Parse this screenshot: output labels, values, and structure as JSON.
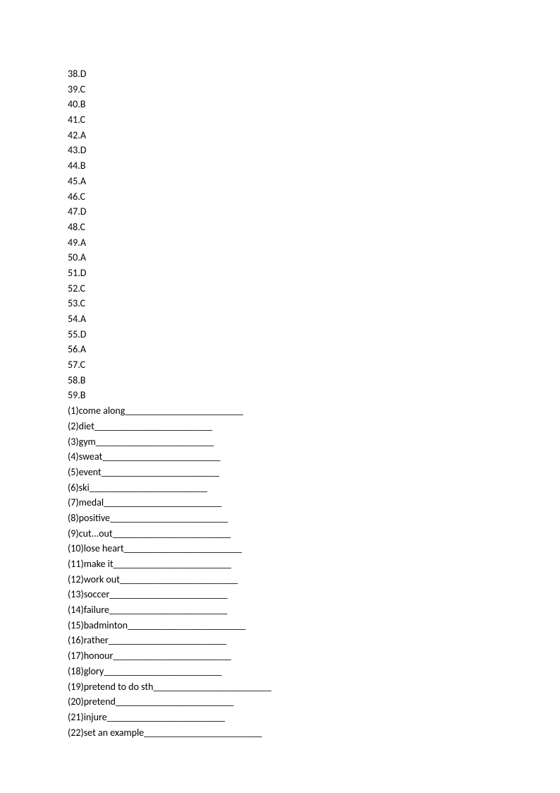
{
  "answers": [
    {
      "num": "38",
      "letter": "D"
    },
    {
      "num": "39",
      "letter": "C"
    },
    {
      "num": "40",
      "letter": "B"
    },
    {
      "num": "41",
      "letter": "C"
    },
    {
      "num": "42",
      "letter": "A"
    },
    {
      "num": "43",
      "letter": "D"
    },
    {
      "num": "44",
      "letter": "B"
    },
    {
      "num": "45",
      "letter": "A"
    },
    {
      "num": "46",
      "letter": "C"
    },
    {
      "num": "47",
      "letter": "D"
    },
    {
      "num": "48",
      "letter": "C"
    },
    {
      "num": "49",
      "letter": "A"
    },
    {
      "num": "50",
      "letter": "A"
    },
    {
      "num": "51",
      "letter": "D"
    },
    {
      "num": "52",
      "letter": "C"
    },
    {
      "num": "53",
      "letter": "C"
    },
    {
      "num": "54",
      "letter": "A"
    },
    {
      "num": "55",
      "letter": "D"
    },
    {
      "num": "56",
      "letter": "A"
    },
    {
      "num": "57",
      "letter": "C"
    },
    {
      "num": "58",
      "letter": "B"
    },
    {
      "num": "59",
      "letter": "B"
    }
  ],
  "vocab": [
    {
      "n": "1",
      "word": "come along",
      "blank": "________________________"
    },
    {
      "n": "2",
      "word": "diet",
      "blank": "________________________"
    },
    {
      "n": "3",
      "word": "gym",
      "blank": "________________________"
    },
    {
      "n": "4",
      "word": "sweat",
      "blank": "________________________"
    },
    {
      "n": "5",
      "word": "event",
      "blank": "________________________"
    },
    {
      "n": "6",
      "word": "ski",
      "blank": "________________________"
    },
    {
      "n": "7",
      "word": "medal",
      "blank": "________________________"
    },
    {
      "n": "8",
      "word": "positive",
      "blank": "________________________"
    },
    {
      "n": "9",
      "word": "cut...out",
      "blank": "________________________"
    },
    {
      "n": "10",
      "word": "lose heart",
      "blank": "________________________"
    },
    {
      "n": "11",
      "word": "make it",
      "blank": "________________________"
    },
    {
      "n": "12",
      "word": "work out",
      "blank": "________________________"
    },
    {
      "n": "13",
      "word": "soccer",
      "blank": "________________________"
    },
    {
      "n": "14",
      "word": "failure",
      "blank": "________________________"
    },
    {
      "n": "15",
      "word": "badminton",
      "blank": "________________________"
    },
    {
      "n": "16",
      "word": "rather",
      "blank": "________________________"
    },
    {
      "n": "17",
      "word": "honour",
      "blank": "________________________"
    },
    {
      "n": "18",
      "word": "glory",
      "blank": "________________________"
    },
    {
      "n": "19",
      "word": "pretend to do sth",
      "blank": "________________________"
    },
    {
      "n": "20",
      "word": "pretend",
      "blank": "________________________"
    },
    {
      "n": "21",
      "word": "injure",
      "blank": "________________________"
    },
    {
      "n": "22",
      "word": "set an example",
      "blank": "________________________"
    }
  ]
}
